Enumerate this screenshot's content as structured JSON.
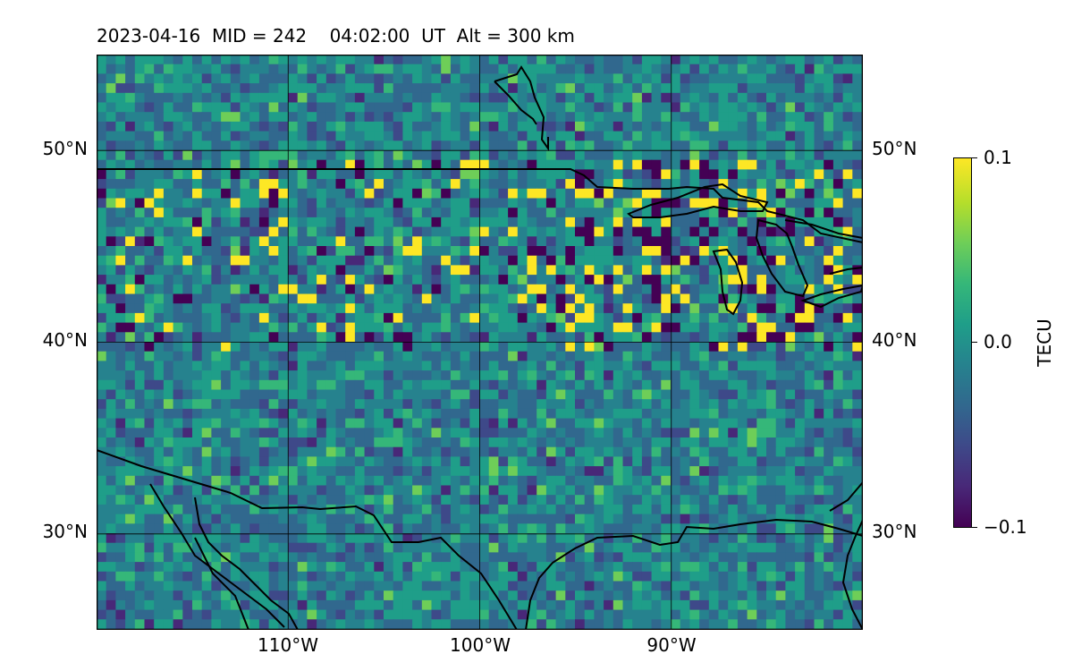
{
  "title": "2023-04-16  MID = 242    04:02:00  UT  Alt = 300 km",
  "axes": {
    "lat_ticks": [
      {
        "lat": 50,
        "label": "50°N"
      },
      {
        "lat": 40,
        "label": "40°N"
      },
      {
        "lat": 30,
        "label": "30°N"
      }
    ],
    "lon_ticks": [
      {
        "lon": -110,
        "label": "110°W"
      },
      {
        "lon": -100,
        "label": "100°W"
      },
      {
        "lon": -90,
        "label": "90°W"
      }
    ],
    "lon_range": [
      -120,
      -80
    ],
    "lat_range": [
      25,
      55
    ]
  },
  "colorbar": {
    "title": "TECU",
    "colormap": "viridis",
    "min": -0.1,
    "max": 0.1,
    "ticks": [
      {
        "value": 0.1,
        "label": "0.1"
      },
      {
        "value": 0.0,
        "label": "0.0"
      },
      {
        "value": -0.1,
        "label": "−0.1"
      }
    ]
  },
  "colors": {
    "background_tec": "#2a8a88",
    "coastline": "#000000",
    "gridline": "#000000"
  }
}
